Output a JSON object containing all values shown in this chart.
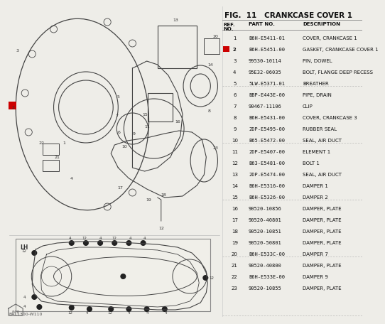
{
  "title": "FIG.  11   CRANKCASE COVER 1",
  "parts": [
    {
      "ref": "1",
      "part": "B6H-E5411-01",
      "desc": "COVER, CRANKCASE 1",
      "highlight": false
    },
    {
      "ref": "2",
      "part": "B6H-E5451-00",
      "desc": "GASKET, CRANKCASE COVER 1",
      "highlight": true
    },
    {
      "ref": "3",
      "part": "99530-10114",
      "desc": "PIN, DOWEL",
      "highlight": false
    },
    {
      "ref": "4",
      "part": "95E32-06035",
      "desc": "BOLT, FLANGE DEEP RECESS",
      "highlight": false
    },
    {
      "ref": "5",
      "part": "5LW-E5371-01",
      "desc": "BREATHER",
      "highlight": false
    },
    {
      "ref": "6",
      "part": "BBP-E443E-00",
      "desc": "PIPE, DRAIN",
      "highlight": false
    },
    {
      "ref": "7",
      "part": "90467-11106",
      "desc": "CLIP",
      "highlight": false
    },
    {
      "ref": "8",
      "part": "B6H-E5431-00",
      "desc": "COVER, CRANKCASE 3",
      "highlight": false
    },
    {
      "ref": "9",
      "part": "2DP-E5495-00",
      "desc": "RUBBER SEAL",
      "highlight": false
    },
    {
      "ref": "10",
      "part": "B65-E5472-00",
      "desc": "SEAL, AIR DUCT",
      "highlight": false
    },
    {
      "ref": "11",
      "part": "2DP-E5407-00",
      "desc": "ELEMENT 1",
      "highlight": false
    },
    {
      "ref": "12",
      "part": "B63-E5481-00",
      "desc": "BOLT 1",
      "highlight": false
    },
    {
      "ref": "13",
      "part": "2DP-E5474-00",
      "desc": "SEAL, AIR DUCT",
      "highlight": false
    },
    {
      "ref": "14",
      "part": "B6H-E5316-00",
      "desc": "DAMPER 1",
      "highlight": false
    },
    {
      "ref": "15",
      "part": "B6H-E5326-00",
      "desc": "DAMPER 2",
      "highlight": false
    },
    {
      "ref": "16",
      "part": "90520-10856",
      "desc": "DAMPER, PLATE",
      "highlight": false
    },
    {
      "ref": "17",
      "part": "90520-40801",
      "desc": "DAMPER, PLATE",
      "highlight": false
    },
    {
      "ref": "18",
      "part": "90520-10851",
      "desc": "DAMPER, PLATE",
      "highlight": false
    },
    {
      "ref": "19",
      "part": "90520-50801",
      "desc": "DAMPER, PLATE",
      "highlight": false
    },
    {
      "ref": "20",
      "part": "B6H-E533C-00",
      "desc": "DAMPER 7",
      "highlight": false
    },
    {
      "ref": "21",
      "part": "90520-40800",
      "desc": "DAMPER, PLATE",
      "highlight": false
    },
    {
      "ref": "22",
      "part": "B6H-E533E-00",
      "desc": "DAMPER 9",
      "highlight": false
    },
    {
      "ref": "23",
      "part": "90520-10855",
      "desc": "DAMPER, PLATE",
      "highlight": false
    }
  ],
  "dividers_after": [
    5,
    10,
    15,
    20
  ],
  "bg_color": "#eeede8",
  "table_bg": "#ffffff",
  "highlight_color": "#cc0000",
  "text_color": "#111111",
  "font_size": 5.0,
  "header_font_size": 5.5,
  "title_font_size": 7.5,
  "footer_text": "BAL1300-W110"
}
